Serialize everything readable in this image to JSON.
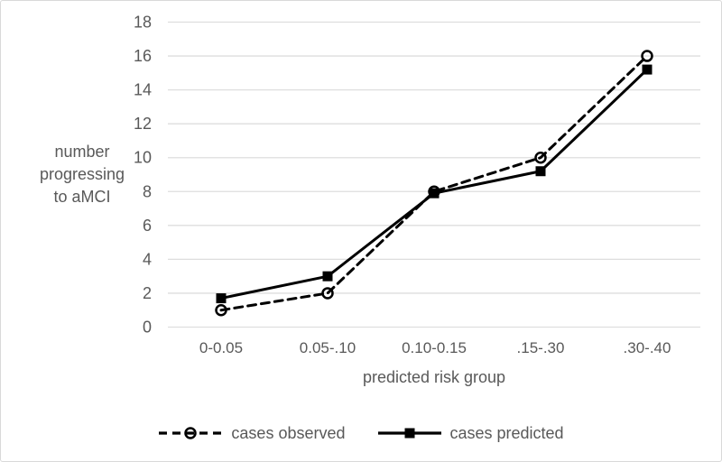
{
  "figure": {
    "background_color": "#ffffff",
    "border_color": "#d9d9d9"
  },
  "chart_data": {
    "type": "line",
    "title": "",
    "categories": [
      "0-0.05",
      "0.05-.10",
      "0.10-0.15",
      ".15-.30",
      ".30-.40"
    ],
    "series": [
      {
        "name": "cases observed",
        "values": [
          1,
          2,
          8,
          10,
          16
        ],
        "line_style": "dashed",
        "marker": "open-circle",
        "color": "#000000"
      },
      {
        "name": "cases predicted",
        "values": [
          1.7,
          3,
          7.9,
          9.2,
          15.2
        ],
        "line_style": "solid",
        "marker": "filled-square",
        "color": "#000000"
      }
    ],
    "xlabel": "predicted risk group",
    "ylabel": "number progressing to aMCI",
    "ylabel_lines": [
      "number",
      "progressing",
      "to aMCI"
    ],
    "ylim": [
      0,
      18
    ],
    "yticks": [
      0,
      2,
      4,
      6,
      8,
      10,
      12,
      14,
      16,
      18
    ],
    "grid": true,
    "legend_position": "bottom",
    "text_color": "#595959",
    "gridline_color": "#dedede"
  }
}
